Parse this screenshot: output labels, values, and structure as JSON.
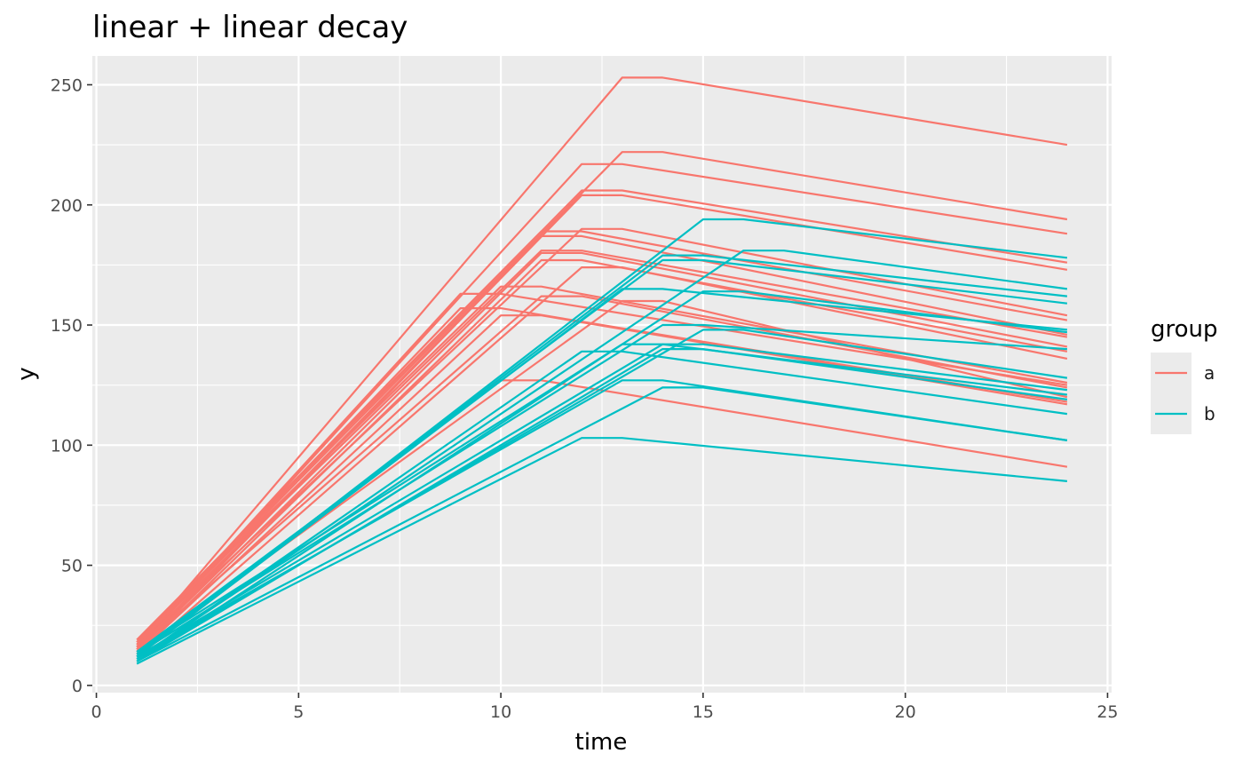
{
  "chart_data": {
    "type": "line",
    "title": "linear + linear decay",
    "xlabel": "time",
    "ylabel": "y",
    "xlim": [
      -0.1,
      25.1
    ],
    "ylim": [
      -3,
      262
    ],
    "x_ticks": [
      0,
      5,
      10,
      15,
      20,
      25
    ],
    "x_tick_labels": [
      "0",
      "5",
      "10",
      "15",
      "20",
      "25"
    ],
    "y_ticks": [
      0,
      50,
      100,
      150,
      200,
      250
    ],
    "y_tick_labels": [
      "0",
      "50",
      "100",
      "150",
      "200",
      "250"
    ],
    "grid": true,
    "legend": {
      "title": "group",
      "position": "right",
      "entries": [
        {
          "label": "a",
          "color": "#F8766D"
        },
        {
          "label": "b",
          "color": "#00BFC4"
        }
      ]
    },
    "colors": {
      "a": "#F8766D",
      "b": "#00BFC4",
      "panel": "#EBEBEB",
      "grid": "#FFFFFF"
    },
    "series": [
      {
        "group": "a",
        "points": [
          [
            1,
            16
          ],
          [
            13,
            253
          ],
          [
            14,
            253
          ],
          [
            24,
            225
          ]
        ]
      },
      {
        "group": "a",
        "points": [
          [
            1,
            17
          ],
          [
            13,
            222
          ],
          [
            14,
            222
          ],
          [
            24,
            194
          ]
        ]
      },
      {
        "group": "a",
        "points": [
          [
            1,
            15
          ],
          [
            12,
            217
          ],
          [
            13,
            217
          ],
          [
            24,
            188
          ]
        ]
      },
      {
        "group": "a",
        "points": [
          [
            1,
            18
          ],
          [
            12,
            206
          ],
          [
            13,
            206
          ],
          [
            24,
            176
          ]
        ]
      },
      {
        "group": "a",
        "points": [
          [
            1,
            14
          ],
          [
            12,
            204
          ],
          [
            13,
            204
          ],
          [
            24,
            173
          ]
        ]
      },
      {
        "group": "a",
        "points": [
          [
            1,
            16
          ],
          [
            12,
            190
          ],
          [
            13,
            190
          ],
          [
            24,
            154
          ]
        ]
      },
      {
        "group": "a",
        "points": [
          [
            1,
            19
          ],
          [
            11,
            189
          ],
          [
            12,
            189
          ],
          [
            24,
            152
          ]
        ]
      },
      {
        "group": "a",
        "points": [
          [
            1,
            15
          ],
          [
            11,
            187
          ],
          [
            12,
            187
          ],
          [
            24,
            146
          ]
        ]
      },
      {
        "group": "a",
        "points": [
          [
            1,
            17
          ],
          [
            11,
            181
          ],
          [
            12,
            181
          ],
          [
            24,
            145
          ]
        ]
      },
      {
        "group": "a",
        "points": [
          [
            1,
            14
          ],
          [
            11,
            180
          ],
          [
            12,
            180
          ],
          [
            24,
            141
          ]
        ]
      },
      {
        "group": "a",
        "points": [
          [
            1,
            13
          ],
          [
            11,
            177
          ],
          [
            12,
            177
          ],
          [
            24,
            139
          ]
        ]
      },
      {
        "group": "a",
        "points": [
          [
            1,
            12
          ],
          [
            12,
            174
          ],
          [
            13,
            174
          ],
          [
            24,
            136
          ]
        ]
      },
      {
        "group": "a",
        "points": [
          [
            1,
            18
          ],
          [
            10,
            166
          ],
          [
            11,
            166
          ],
          [
            24,
            126
          ]
        ]
      },
      {
        "group": "a",
        "points": [
          [
            1,
            16
          ],
          [
            9,
            163
          ],
          [
            10,
            163
          ],
          [
            24,
            125
          ]
        ]
      },
      {
        "group": "a",
        "points": [
          [
            1,
            15
          ],
          [
            11,
            162
          ],
          [
            12,
            162
          ],
          [
            24,
            124
          ]
        ]
      },
      {
        "group": "a",
        "points": [
          [
            1,
            14
          ],
          [
            13,
            160
          ],
          [
            14,
            160
          ],
          [
            24,
            120
          ]
        ]
      },
      {
        "group": "a",
        "points": [
          [
            1,
            17
          ],
          [
            9,
            157
          ],
          [
            10,
            157
          ],
          [
            24,
            118
          ]
        ]
      },
      {
        "group": "a",
        "points": [
          [
            1,
            13
          ],
          [
            10,
            154
          ],
          [
            11,
            154
          ],
          [
            24,
            117
          ]
        ]
      },
      {
        "group": "a",
        "points": [
          [
            1,
            12
          ],
          [
            10,
            127
          ],
          [
            11,
            127
          ],
          [
            24,
            91
          ]
        ]
      },
      {
        "group": "b",
        "points": [
          [
            1,
            12
          ],
          [
            15,
            194
          ],
          [
            16,
            194
          ],
          [
            24,
            178
          ]
        ]
      },
      {
        "group": "b",
        "points": [
          [
            1,
            11
          ],
          [
            16,
            181
          ],
          [
            17,
            181
          ],
          [
            24,
            165
          ]
        ]
      },
      {
        "group": "b",
        "points": [
          [
            1,
            13
          ],
          [
            14,
            179
          ],
          [
            15,
            179
          ],
          [
            24,
            162
          ]
        ]
      },
      {
        "group": "b",
        "points": [
          [
            1,
            14
          ],
          [
            14,
            177
          ],
          [
            15,
            177
          ],
          [
            24,
            159
          ]
        ]
      },
      {
        "group": "b",
        "points": [
          [
            1,
            12
          ],
          [
            13,
            165
          ],
          [
            14,
            165
          ],
          [
            24,
            148
          ]
        ]
      },
      {
        "group": "b",
        "points": [
          [
            1,
            10
          ],
          [
            15,
            164
          ],
          [
            16,
            164
          ],
          [
            24,
            147
          ]
        ]
      },
      {
        "group": "b",
        "points": [
          [
            1,
            13
          ],
          [
            14,
            150
          ],
          [
            15,
            150
          ],
          [
            24,
            140
          ]
        ]
      },
      {
        "group": "b",
        "points": [
          [
            1,
            11
          ],
          [
            15,
            148
          ],
          [
            16,
            148
          ],
          [
            24,
            128
          ]
        ]
      },
      {
        "group": "b",
        "points": [
          [
            1,
            12
          ],
          [
            14,
            142
          ],
          [
            15,
            142
          ],
          [
            24,
            123
          ]
        ]
      },
      {
        "group": "b",
        "points": [
          [
            1,
            14
          ],
          [
            13,
            142
          ],
          [
            14,
            142
          ],
          [
            24,
            121
          ]
        ]
      },
      {
        "group": "b",
        "points": [
          [
            1,
            10
          ],
          [
            14,
            140
          ],
          [
            15,
            140
          ],
          [
            24,
            119
          ]
        ]
      },
      {
        "group": "b",
        "points": [
          [
            1,
            11
          ],
          [
            12,
            139
          ],
          [
            13,
            139
          ],
          [
            24,
            113
          ]
        ]
      },
      {
        "group": "b",
        "points": [
          [
            1,
            12
          ],
          [
            13,
            127
          ],
          [
            14,
            127
          ],
          [
            24,
            102
          ]
        ]
      },
      {
        "group": "b",
        "points": [
          [
            1,
            10
          ],
          [
            14,
            124
          ],
          [
            15,
            124
          ],
          [
            24,
            102
          ]
        ]
      },
      {
        "group": "b",
        "points": [
          [
            1,
            9
          ],
          [
            12,
            103
          ],
          [
            13,
            103
          ],
          [
            24,
            85
          ]
        ]
      }
    ]
  }
}
